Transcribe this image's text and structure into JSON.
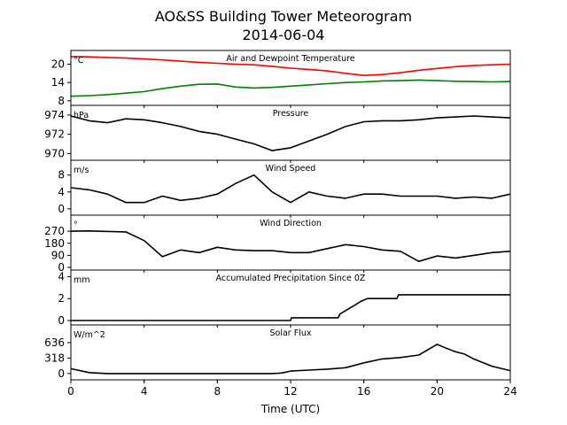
{
  "title_line1": "AO&SS Building Tower Meteorogram",
  "title_line2": "2014-06-04",
  "xlabel": "Time (UTC)",
  "chart_data": {
    "type": "line",
    "title": "AO&SS Building Tower Meteorogram 2014-06-04",
    "xlabel": "Time (UTC)",
    "xlim": [
      0,
      24
    ],
    "xticks": [
      0,
      4,
      8,
      12,
      16,
      20,
      24
    ],
    "grid": false,
    "panels": [
      {
        "id": "temperature",
        "title": "Air and Dewpoint Temperature",
        "unit": "°C",
        "ylim": [
          6.5,
          24.5
        ],
        "yticks": [
          8,
          14,
          20
        ],
        "series": [
          {
            "color": "#ff0000",
            "x": [
              0,
              1,
              2,
              3,
              4,
              5,
              6,
              7,
              8,
              9,
              10,
              11,
              12,
              13,
              14,
              15,
              16,
              17,
              18,
              19,
              20,
              21,
              22,
              23,
              24
            ],
            "y": [
              22.5,
              22.4,
              22.2,
              22.0,
              21.7,
              21.4,
              21.0,
              20.6,
              20.3,
              20.0,
              19.8,
              19.3,
              18.7,
              18.3,
              17.8,
              17.0,
              16.3,
              16.6,
              17.2,
              18.0,
              18.6,
              19.2,
              19.6,
              19.8,
              20.0
            ]
          },
          {
            "color": "#008000",
            "x": [
              0,
              1,
              2,
              3,
              4,
              5,
              6,
              7,
              8,
              9,
              10,
              11,
              12,
              13,
              14,
              15,
              16,
              17,
              18,
              19,
              20,
              21,
              22,
              23,
              24
            ],
            "y": [
              9.5,
              9.7,
              10.0,
              10.5,
              11.0,
              12.0,
              12.8,
              13.4,
              13.5,
              12.5,
              12.2,
              12.4,
              12.8,
              13.2,
              13.6,
              14.0,
              14.2,
              14.5,
              14.6,
              14.8,
              14.6,
              14.4,
              14.3,
              14.2,
              14.3
            ]
          }
        ]
      },
      {
        "id": "pressure",
        "title": "Pressure",
        "unit": "hPa",
        "ylim": [
          969.3,
          975.0
        ],
        "yticks": [
          970,
          972,
          974
        ],
        "series": [
          {
            "color": "#000000",
            "x": [
              0,
              1,
              2,
              3,
              4,
              5,
              6,
              7,
              8,
              9,
              10,
              11,
              12,
              13,
              14,
              15,
              16,
              17,
              18,
              19,
              20,
              21,
              22,
              23,
              24
            ],
            "y": [
              973.9,
              973.4,
              973.2,
              973.6,
              973.5,
              973.2,
              972.8,
              972.3,
              972.0,
              971.5,
              971.0,
              970.3,
              970.6,
              971.3,
              972.0,
              972.8,
              973.3,
              973.4,
              973.4,
              973.5,
              973.7,
              973.8,
              973.9,
              973.8,
              973.7
            ]
          }
        ]
      },
      {
        "id": "wind_speed",
        "title": "Wind Speed",
        "unit": "m/s",
        "ylim": [
          -1.5,
          11.5
        ],
        "yticks": [
          0,
          4,
          8
        ],
        "series": [
          {
            "color": "#000000",
            "x": [
              0,
              1,
              2,
              3,
              4,
              5,
              6,
              7,
              8,
              9,
              10,
              11,
              12,
              13,
              14,
              15,
              16,
              17,
              18,
              19,
              20,
              21,
              22,
              23,
              24
            ],
            "y": [
              5.0,
              4.5,
              3.5,
              1.5,
              1.5,
              3.0,
              2.0,
              2.5,
              3.5,
              6.0,
              8.0,
              4.0,
              1.5,
              4.0,
              3.0,
              2.5,
              3.5,
              3.5,
              3.0,
              3.0,
              3.0,
              2.5,
              2.8,
              2.5,
              3.5
            ]
          }
        ]
      },
      {
        "id": "wind_direction",
        "title": "Wind Direction",
        "unit": "°",
        "ylim": [
          -20,
          390
        ],
        "yticks": [
          0,
          90,
          180,
          270
        ],
        "series": [
          {
            "color": "#000000",
            "x": [
              0,
              1,
              2,
              3,
              4,
              5,
              6,
              7,
              8,
              9,
              10,
              11,
              12,
              13,
              14,
              15,
              16,
              17,
              18,
              19,
              20,
              21,
              22,
              23,
              24
            ],
            "y": [
              270,
              272,
              268,
              265,
              200,
              80,
              130,
              110,
              150,
              130,
              125,
              125,
              110,
              110,
              140,
              170,
              155,
              130,
              120,
              45,
              85,
              70,
              90,
              110,
              120
            ]
          }
        ]
      },
      {
        "id": "precipitation",
        "title": "Accumulated Precipitation Since 0Z",
        "unit": "mm",
        "ylim": [
          -0.4,
          4.6
        ],
        "yticks": [
          0,
          2,
          4
        ],
        "series": [
          {
            "color": "#000000",
            "x": [
              0,
              12,
              12.05,
              14.6,
              14.7,
              15.0,
              15.3,
              15.6,
              15.9,
              16.2,
              17.8,
              17.9,
              24
            ],
            "y": [
              0,
              0,
              0.25,
              0.25,
              0.6,
              0.9,
              1.2,
              1.5,
              1.8,
              2.0,
              2.0,
              2.35,
              2.35
            ]
          }
        ]
      },
      {
        "id": "solar",
        "title": "Solar Flux",
        "unit": "W/m^2",
        "ylim": [
          -130,
          1000
        ],
        "yticks": [
          0,
          318,
          636
        ],
        "series": [
          {
            "color": "#000000",
            "x": [
              0,
              1,
              2,
              3,
              4,
              6,
              8,
              10,
              11,
              11.5,
              12,
              13,
              14,
              15,
              16,
              17,
              18,
              19,
              20,
              20.5,
              21,
              21.5,
              22,
              23,
              24
            ],
            "y": [
              100,
              20,
              0,
              0,
              0,
              0,
              0,
              0,
              0,
              10,
              50,
              70,
              90,
              120,
              220,
              300,
              330,
              380,
              600,
              520,
              450,
              400,
              300,
              150,
              60
            ]
          }
        ]
      }
    ]
  }
}
